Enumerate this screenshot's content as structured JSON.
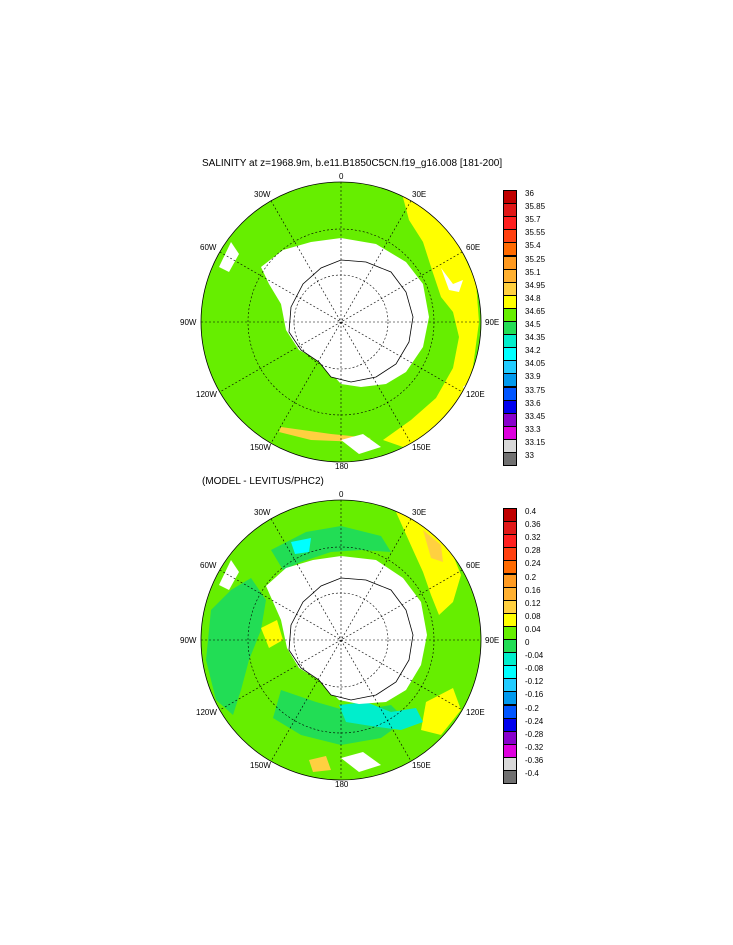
{
  "top": {
    "title": "SALINITY at z=1968.9m, b.e11.B1850C5CN.f19_g16.008 [181-200]",
    "labels": {
      "n0": "0",
      "n30e": "30E",
      "n60e": "60E",
      "n90e": "90E",
      "n120e": "120E",
      "n150e": "150E",
      "n180": "180",
      "n150w": "150W",
      "n120w": "120W",
      "n90w": "90W",
      "n60w": "60W",
      "n30w": "30W"
    },
    "colorbar": {
      "ticks": [
        "36",
        "35.85",
        "35.7",
        "35.55",
        "35.4",
        "35.25",
        "35.1",
        "34.95",
        "34.8",
        "34.65",
        "34.5",
        "34.35",
        "34.2",
        "34.05",
        "33.9",
        "33.75",
        "33.6",
        "33.45",
        "33.3",
        "33.15",
        "33"
      ],
      "colors": [
        "#c00000",
        "#e01818",
        "#ff2020",
        "#ff4010",
        "#ff6a00",
        "#ff9a20",
        "#ffb030",
        "#ffd040",
        "#ffff00",
        "#66ee00",
        "#22dd55",
        "#00eecc",
        "#00ffff",
        "#22ccff",
        "#0099ee",
        "#0055ff",
        "#0000ee",
        "#8800cc",
        "#dd00dd",
        "#d8d8d8",
        "#707070"
      ]
    }
  },
  "bottom": {
    "title": "(MODEL - LEVITUS/PHC2)",
    "labels": {
      "n0": "0",
      "n30e": "30E",
      "n60e": "60E",
      "n90e": "90E",
      "n120e": "120E",
      "n150e": "150E",
      "n180": "180",
      "n150w": "150W",
      "n120w": "120W",
      "n90w": "90W",
      "n60w": "60W",
      "n30w": "30W"
    },
    "colorbar": {
      "ticks": [
        "0.4",
        "0.36",
        "0.32",
        "0.28",
        "0.24",
        "0.2",
        "0.16",
        "0.12",
        "0.08",
        "0.04",
        "0",
        "-0.04",
        "-0.08",
        "-0.12",
        "-0.16",
        "-0.2",
        "-0.24",
        "-0.28",
        "-0.32",
        "-0.36",
        "-0.4"
      ],
      "colors": [
        "#c00000",
        "#e01818",
        "#ff2020",
        "#ff4010",
        "#ff6a00",
        "#ff9a20",
        "#ffb030",
        "#ffd040",
        "#ffff00",
        "#66ee00",
        "#22dd55",
        "#00eecc",
        "#00ffff",
        "#22ccff",
        "#0099ee",
        "#0055ff",
        "#0000ee",
        "#8800cc",
        "#dd00dd",
        "#d8d8d8",
        "#707070"
      ]
    }
  },
  "map_colors": {
    "land": "#ffffff",
    "ocean_main": "#66ee00",
    "yellow": "#ffff00",
    "orange": "#ffd040",
    "cyan": "#00ffff",
    "aqua": "#00eecc",
    "green_alt": "#22dd55",
    "grid": "#000000"
  }
}
